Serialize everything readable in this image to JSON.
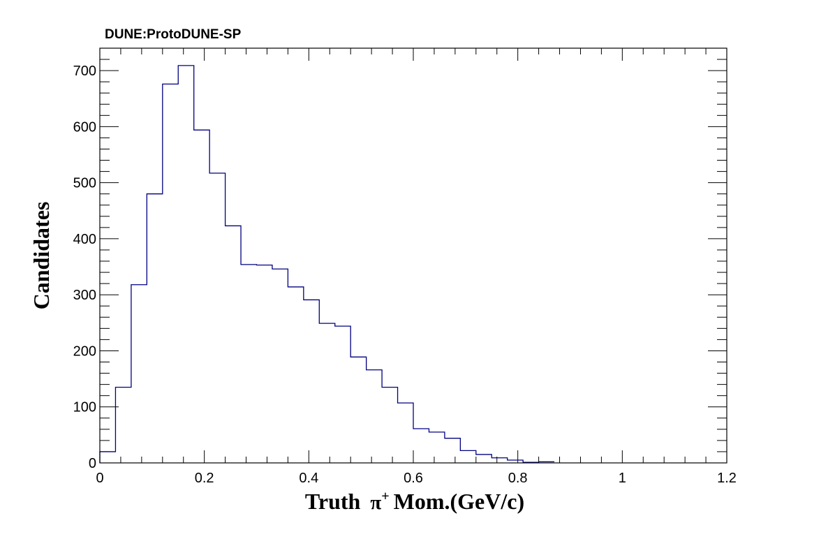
{
  "chart_data": {
    "type": "histogram",
    "header": "DUNE:ProtoDUNE-SP",
    "xlabel_parts": [
      "Truth",
      "π",
      "+",
      "Mom.(GeV/c)"
    ],
    "ylabel": "Candidates",
    "xlim": [
      0,
      1.2
    ],
    "ylim": [
      0,
      740
    ],
    "x_ticks": [
      0,
      0.2,
      0.4,
      0.6,
      0.8,
      1,
      1.2
    ],
    "x_tick_labels": [
      "0",
      "0.2",
      "0.4",
      "0.6",
      "0.8",
      "1",
      "1.2"
    ],
    "y_ticks": [
      0,
      100,
      200,
      300,
      400,
      500,
      600,
      700
    ],
    "y_tick_labels": [
      "0",
      "100",
      "200",
      "300",
      "400",
      "500",
      "600",
      "700"
    ],
    "grid": false,
    "line_color": "#000080",
    "bin_width": 0.03,
    "bin_edges_start": 0,
    "values": [
      20,
      135,
      318,
      480,
      676,
      709,
      594,
      517,
      423,
      354,
      353,
      346,
      314,
      291,
      249,
      244,
      189,
      166,
      135,
      107,
      61,
      55,
      44,
      22,
      15,
      9,
      5,
      1,
      2
    ]
  }
}
